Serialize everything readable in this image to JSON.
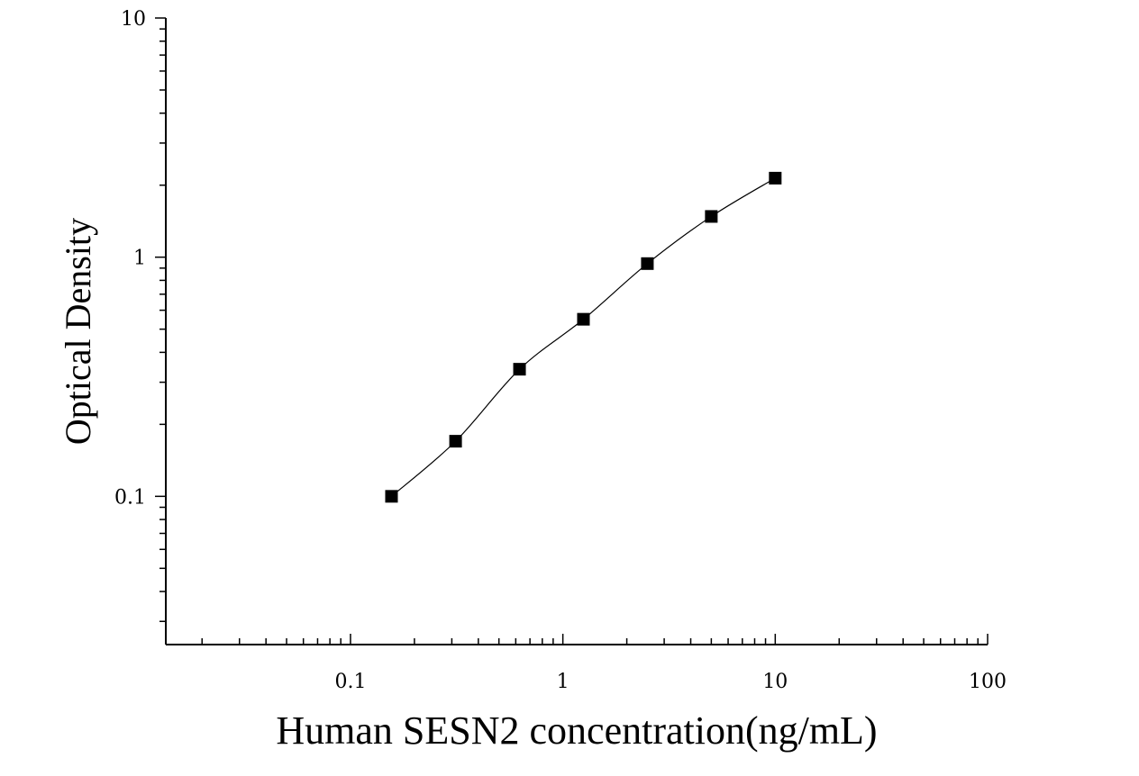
{
  "chart_data": {
    "type": "scatter",
    "title": "",
    "xlabel": "Human SESN2 concentration(ng/mL)",
    "ylabel": "Optical Density",
    "xscale": "log",
    "yscale": "log",
    "xlim": [
      0.0135,
      100
    ],
    "ylim": [
      0.024,
      10
    ],
    "grid": false,
    "legend": "none",
    "x_tick_labels": [
      "0.1",
      "1",
      "10",
      "100"
    ],
    "y_tick_labels": [
      "0.1",
      "1",
      "10"
    ],
    "x_tick_values": [
      0.1,
      1,
      10,
      100
    ],
    "y_tick_values": [
      0.1,
      1,
      10
    ],
    "series": [
      {
        "marker": "square",
        "color": "#000000",
        "fit_line": true,
        "x": [
          0.156,
          0.3125,
          0.625,
          1.25,
          2.5,
          5,
          10
        ],
        "y": [
          0.1,
          0.17,
          0.34,
          0.55,
          0.94,
          1.48,
          2.14
        ]
      }
    ]
  }
}
